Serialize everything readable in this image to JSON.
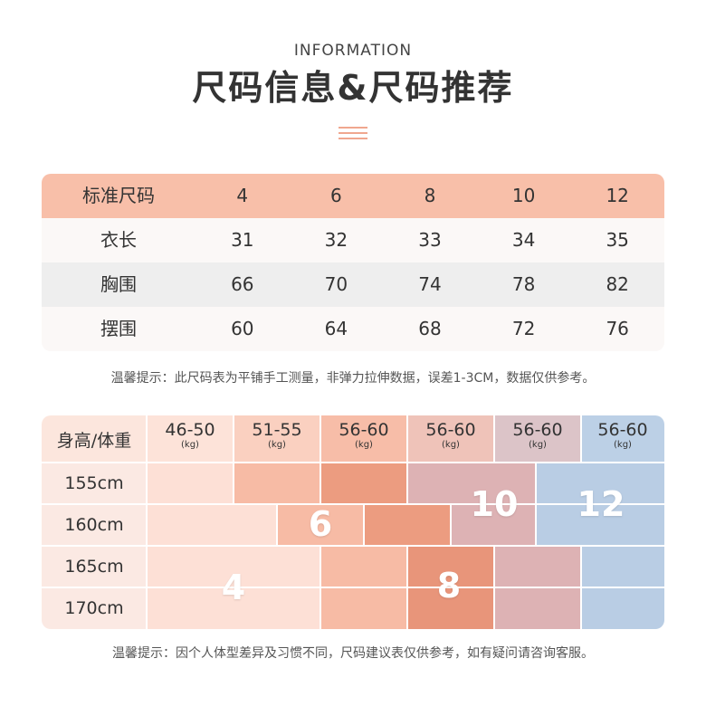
{
  "header": {
    "eyebrow": "INFORMATION",
    "title": "尺码信息&尺码推荐"
  },
  "size_table": {
    "header_label": "标准尺码",
    "sizes": [
      "4",
      "6",
      "8",
      "10",
      "12"
    ],
    "rows": [
      {
        "label": "衣长",
        "values": [
          "31",
          "32",
          "33",
          "34",
          "35"
        ]
      },
      {
        "label": "胸围",
        "values": [
          "66",
          "70",
          "74",
          "78",
          "82"
        ]
      },
      {
        "label": "摆围",
        "values": [
          "60",
          "64",
          "68",
          "72",
          "76"
        ]
      }
    ],
    "note": "温馨提示：此尺码表为平铺手工测量，非弹力拉伸数据，误差1-3CM，数据仅供参考。"
  },
  "recommendation": {
    "header_label": "身高/体重",
    "weights": [
      "46-50",
      "51-55",
      "56-60",
      "56-60",
      "56-60",
      "56-60"
    ],
    "weight_unit": "(kg)",
    "heights": [
      "155cm",
      "160cm",
      "165cm",
      "170cm"
    ],
    "size_labels": [
      "4",
      "6",
      "8",
      "10",
      "12"
    ],
    "note": "温馨提示：因个人体型差异及习惯不同，尺码建议表仅供参考，如有疑问请咨询客服。"
  },
  "colors": {
    "peach_header": "#f8bfa9",
    "stripe_light": "#fbf8f7",
    "stripe_dark": "#eeeeee",
    "size4": "#fde0d6",
    "size6": "#f7bba5",
    "size6_dark": "#ec9c80",
    "size8": "#e8957a",
    "size10": "#ddb2b4",
    "size12": "#b9cde4"
  }
}
